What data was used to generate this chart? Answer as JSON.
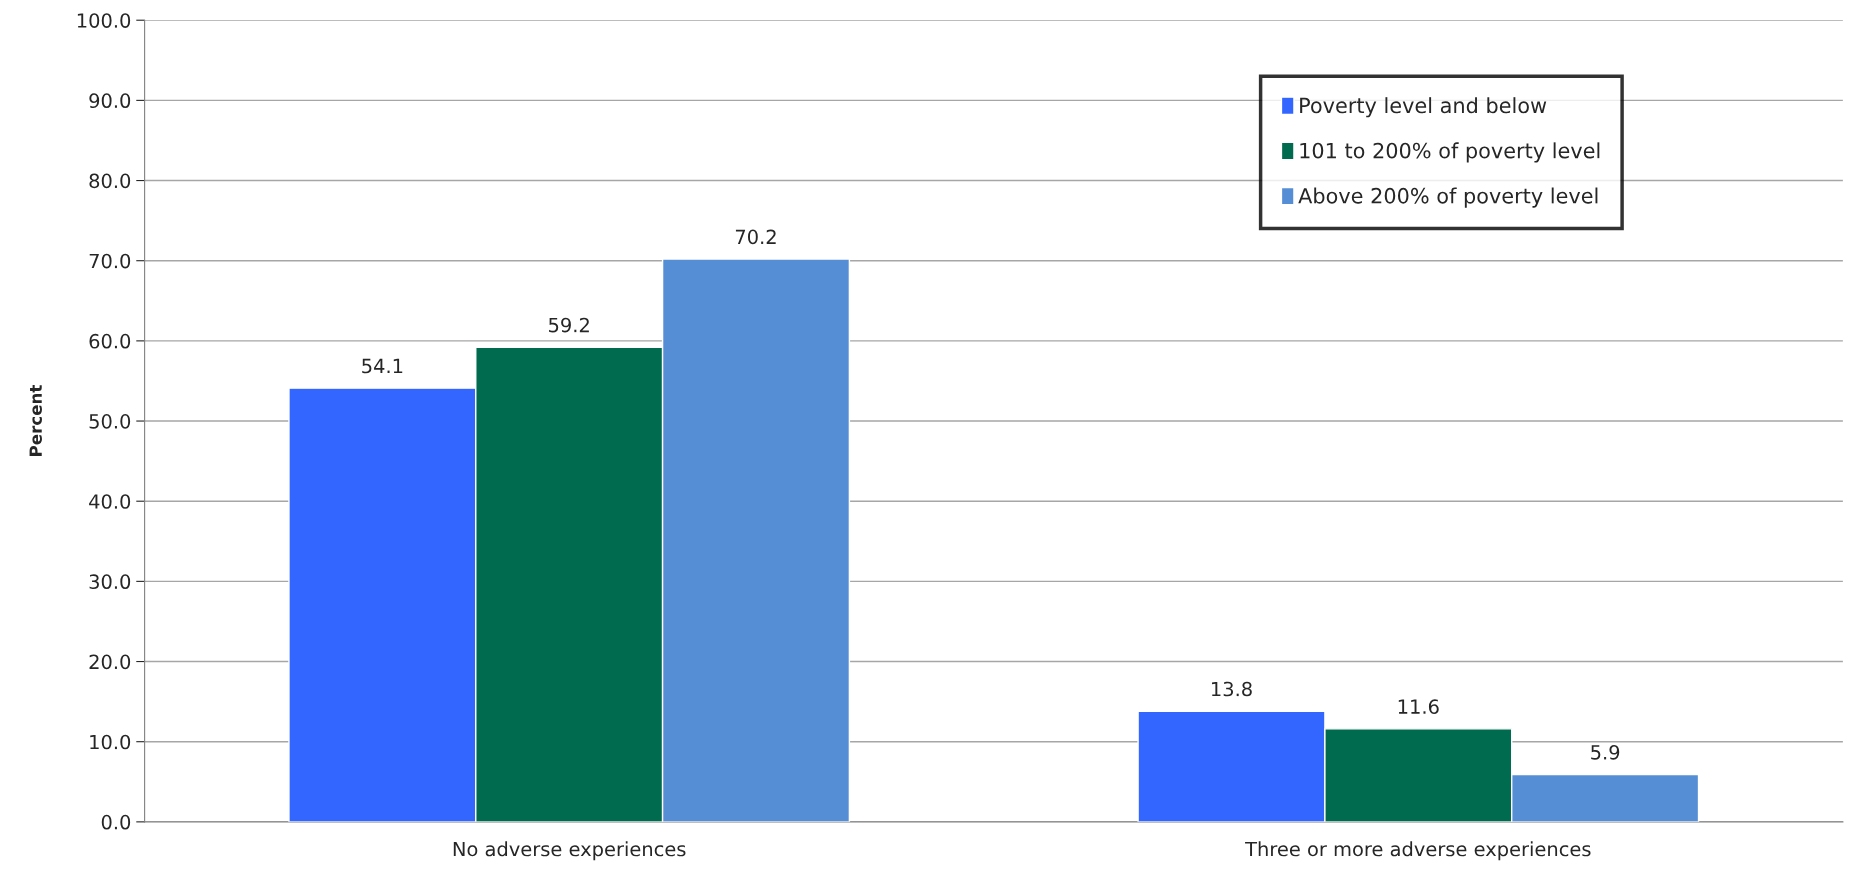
{
  "chart_data": {
    "type": "bar",
    "ylabel": "Percent",
    "categories": [
      "No adverse experiences",
      "Three or more adverse experiences"
    ],
    "series": [
      {
        "name": "Poverty level and below",
        "color": "#3366ff",
        "values": [
          54.1,
          13.8
        ]
      },
      {
        "name": "101 to 200% of poverty level",
        "color": "#006b4f",
        "values": [
          59.2,
          11.6
        ]
      },
      {
        "name": "Above 200% of poverty level",
        "color": "#558ed5",
        "values": [
          70.2,
          5.9
        ]
      }
    ],
    "ylim": [
      0,
      100
    ],
    "yticks": [
      {
        "value": 0,
        "label": "0.0"
      },
      {
        "value": 10,
        "label": "10.0"
      },
      {
        "value": 20,
        "label": "20.0"
      },
      {
        "value": 30,
        "label": "30.0"
      },
      {
        "value": 40,
        "label": "40.0"
      },
      {
        "value": 50,
        "label": "50.0"
      },
      {
        "value": 60,
        "label": "60.0"
      },
      {
        "value": 70,
        "label": "70.0"
      },
      {
        "value": 80,
        "label": "80.0"
      },
      {
        "value": 90,
        "label": "90.0"
      },
      {
        "value": 100,
        "label": "100.0"
      }
    ],
    "grid": "y",
    "legend": "top right",
    "data_labels": true
  }
}
